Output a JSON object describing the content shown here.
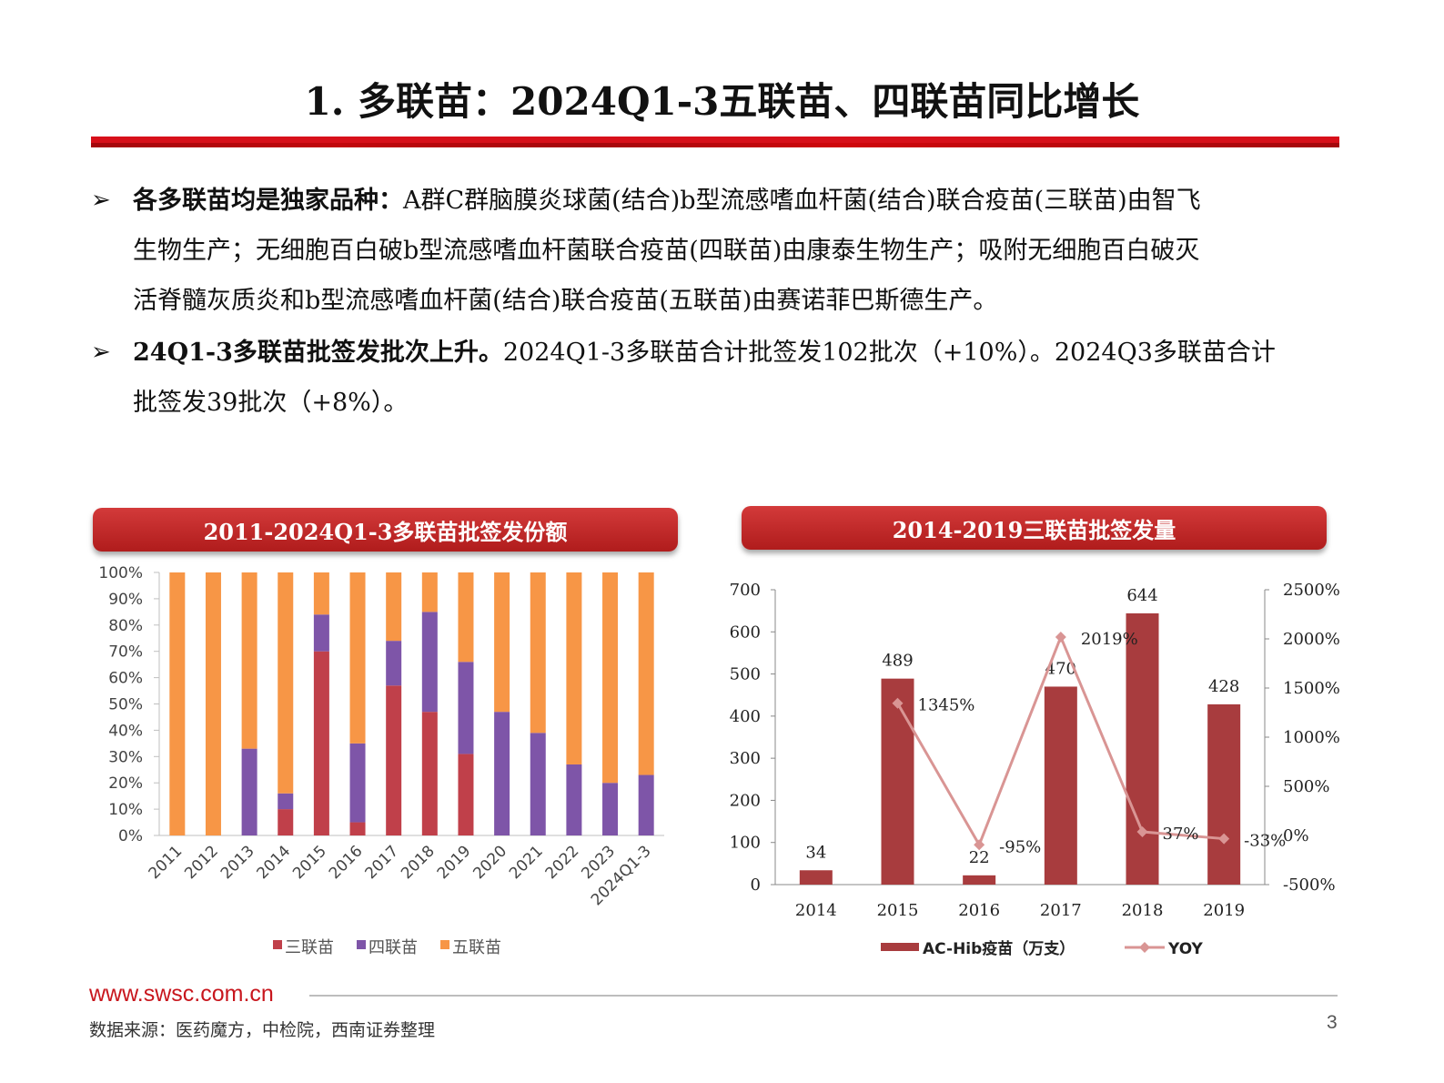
{
  "title": "1. 多联苗：2024Q1-3五联苗、四联苗同比增长",
  "bullets": [
    {
      "marker": "➢",
      "bold": "各多联苗均是独家品种：",
      "lines": [
        "A群C群脑膜炎球菌(结合)b型流感嗜血杆菌(结合)联合疫苗(三联苗)由智飞",
        "生物生产；无细胞百白破b型流感嗜血杆菌联合疫苗(四联苗)由康泰生物生产；吸附无细胞百白破灭",
        "活脊髓灰质炎和b型流感嗜血杆菌(结合)联合疫苗(五联苗)由赛诺菲巴斯德生产。"
      ]
    },
    {
      "marker": "➢",
      "bold": "24Q1-3多联苗批签发批次上升。",
      "lines": [
        "2024Q1-3多联苗合计批签发102批次（+10%）。2024Q3多联苗合计",
        "批签发39批次（+8%）。"
      ]
    }
  ],
  "left_panel": {
    "header": "2011-2024Q1-3多联苗批签发份额"
  },
  "right_panel": {
    "header": "2014-2019三联苗批签发量"
  },
  "chart_data": [
    {
      "type": "bar",
      "stacked": true,
      "percent": true,
      "categories": [
        "2011",
        "2012",
        "2013",
        "2014",
        "2015",
        "2016",
        "2017",
        "2018",
        "2019",
        "2020",
        "2021",
        "2022",
        "2023",
        "2024Q1-3"
      ],
      "series": [
        {
          "name": "三联苗",
          "color": "#c0404a",
          "values": [
            0,
            0,
            0,
            10,
            70,
            5,
            57,
            47,
            31,
            0,
            0,
            0,
            0,
            0
          ]
        },
        {
          "name": "四联苗",
          "color": "#7e55a8",
          "values": [
            0,
            0,
            33,
            6,
            14,
            30,
            17,
            38,
            35,
            47,
            39,
            27,
            20,
            23
          ]
        },
        {
          "name": "五联苗",
          "color": "#f79646",
          "values": [
            100,
            100,
            67,
            84,
            16,
            65,
            26,
            15,
            34,
            53,
            61,
            73,
            80,
            77
          ]
        }
      ],
      "y_ticks": [
        "0%",
        "10%",
        "20%",
        "30%",
        "40%",
        "50%",
        "60%",
        "70%",
        "80%",
        "90%",
        "100%"
      ],
      "ylim": [
        0,
        100
      ],
      "legend_position": "bottom"
    },
    {
      "type": "bar+line",
      "categories": [
        "2014",
        "2015",
        "2016",
        "2017",
        "2018",
        "2019"
      ],
      "series": [
        {
          "name": "AC-Hib疫苗（万支）",
          "type": "bar",
          "color": "#a83c3e",
          "values": [
            34,
            489,
            22,
            470,
            644,
            428
          ],
          "labels": [
            "34",
            "489",
            "22",
            "470",
            "644",
            "428"
          ]
        },
        {
          "name": "YOY",
          "type": "line",
          "axis": "right",
          "color": "#d99594",
          "values": [
            null,
            1345,
            -95,
            2019,
            37,
            -33
          ],
          "labels": [
            "",
            "1345%",
            "-95%",
            "2019%",
            "37%",
            "-33%"
          ]
        }
      ],
      "y_left": {
        "ticks": [
          "0",
          "100",
          "200",
          "300",
          "400",
          "500",
          "600",
          "700"
        ],
        "range": [
          0,
          700
        ]
      },
      "y_right": {
        "ticks": [
          "-500%",
          "0%",
          "500%",
          "1000%",
          "1500%",
          "2000%",
          "2500%"
        ],
        "range": [
          -500,
          2500
        ]
      },
      "legend_position": "bottom"
    }
  ],
  "footer": {
    "url": "www.swsc.com.cn",
    "source": "数据来源：医药魔方，中检院，西南证券整理",
    "page": "3"
  }
}
